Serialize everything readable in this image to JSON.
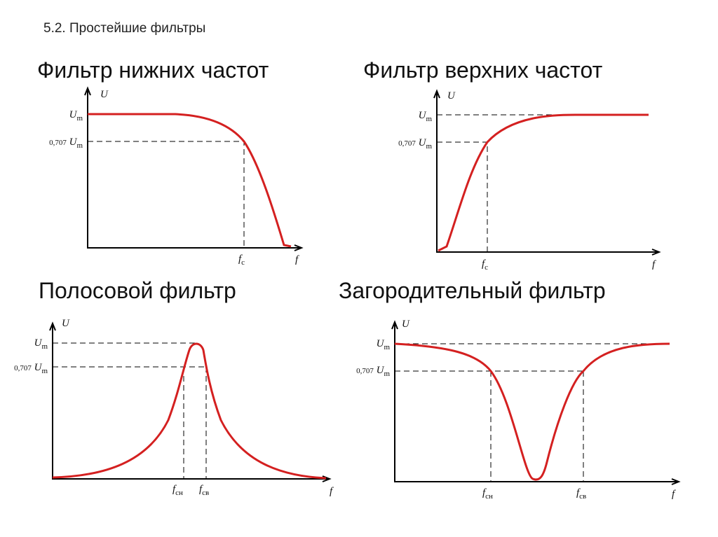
{
  "header": {
    "title": "5.2. Простейшие фильтры"
  },
  "panels": [
    {
      "title": "Фильтр нижних частот",
      "y_axis": "U",
      "x_axis": "f",
      "levels": [
        {
          "symbol": "U",
          "sub": "m"
        },
        {
          "coef": "0,707",
          "symbol": "U",
          "sub": "m"
        }
      ],
      "freqs": [
        {
          "symbol": "f",
          "sub": "с"
        }
      ]
    },
    {
      "title": "Фильтр верхних частот",
      "y_axis": "U",
      "x_axis": "f",
      "levels": [
        {
          "symbol": "U",
          "sub": "m"
        },
        {
          "coef": "0,707",
          "symbol": "U",
          "sub": "m"
        }
      ],
      "freqs": [
        {
          "symbol": "f",
          "sub": "с"
        }
      ]
    },
    {
      "title": "Полосовой фильтр",
      "y_axis": "U",
      "x_axis": "f",
      "levels": [
        {
          "symbol": "U",
          "sub": "m"
        },
        {
          "coef": "0,707",
          "symbol": "U",
          "sub": "m"
        }
      ],
      "freqs": [
        {
          "symbol": "f",
          "sub": "сн"
        },
        {
          "symbol": "f",
          "sub": "св"
        }
      ]
    },
    {
      "title": "Загородительный фильтр",
      "y_axis": "U",
      "x_axis": "f",
      "levels": [
        {
          "symbol": "U",
          "sub": "m"
        },
        {
          "coef": "0,707",
          "symbol": "U",
          "sub": "m"
        }
      ],
      "freqs": [
        {
          "symbol": "f",
          "sub": "сн"
        },
        {
          "symbol": "f",
          "sub": "св"
        }
      ]
    }
  ]
}
